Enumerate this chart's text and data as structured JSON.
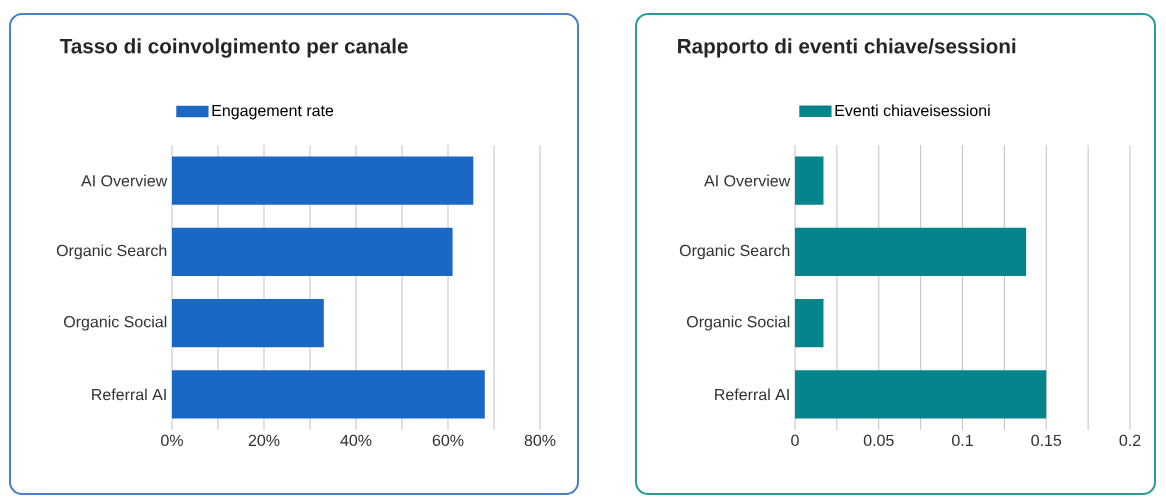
{
  "chart_data": [
    {
      "type": "bar",
      "orientation": "horizontal",
      "title": "Tasso di coinvolgimento per canale",
      "categories": [
        "AI Overview",
        "Organic Search",
        "Organic Social",
        "Referral AI"
      ],
      "series": [
        {
          "name": "Engagement rate",
          "color": "#1b67c4",
          "values": [
            65.5,
            61,
            33,
            68
          ]
        }
      ],
      "xlim": [
        0,
        80
      ],
      "xticks": [
        {
          "value": 0,
          "label": "0%"
        },
        {
          "value": 10,
          "label": null
        },
        {
          "value": 20,
          "label": "20%"
        },
        {
          "value": 30,
          "label": null
        },
        {
          "value": 40,
          "label": "40%"
        },
        {
          "value": 50,
          "label": null
        },
        {
          "value": 60,
          "label": "60%"
        },
        {
          "value": 70,
          "label": null
        },
        {
          "value": 80,
          "label": "80%"
        }
      ],
      "grid": "x",
      "legend": "top"
    },
    {
      "type": "bar",
      "orientation": "horizontal",
      "title": "Rapporto di eventi chiave/sessioni",
      "categories": [
        "AI Overview",
        "Organic Search",
        "Organic Social",
        "Referral AI"
      ],
      "series": [
        {
          "name": "Eventi chiaveisessioni",
          "color": "#05848c",
          "values": [
            0.017,
            0.138,
            0.017,
            0.15
          ]
        }
      ],
      "xlim": [
        0,
        0.2
      ],
      "xticks": [
        0,
        {
          "value": 0.025,
          "label": null
        },
        0.05,
        {
          "value": 0.075,
          "label": null
        },
        0.1,
        {
          "value": 0.125,
          "label": null
        },
        0.15,
        {
          "value": 0.175,
          "label": null
        },
        0.2
      ],
      "grid": "x",
      "legend": "top"
    }
  ]
}
